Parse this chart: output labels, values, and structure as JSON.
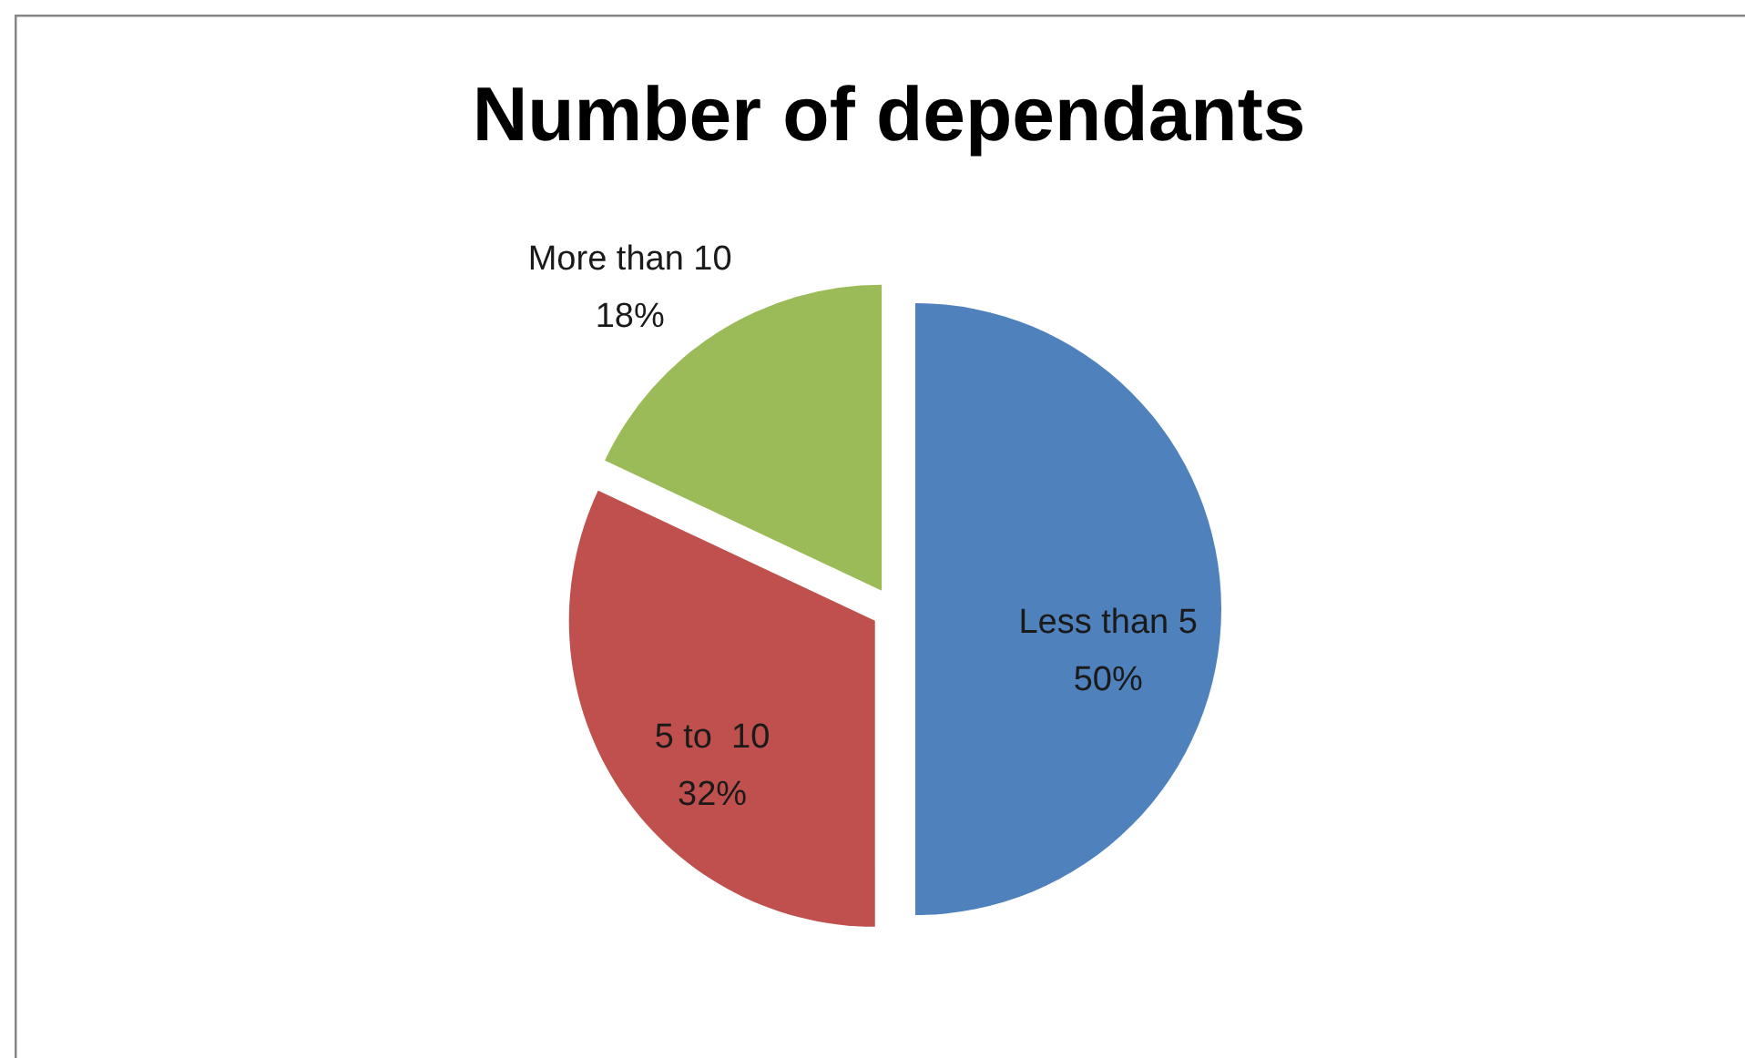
{
  "chart_data": {
    "type": "pie",
    "title": "Number of dependants",
    "categories": [
      "Less than 5",
      "5 to  10",
      "More than 10"
    ],
    "values": [
      50,
      32,
      18
    ],
    "value_labels": [
      "50%",
      "32%",
      "18%"
    ],
    "colors": [
      "#4f81bd",
      "#c0504d",
      "#9bbb59"
    ]
  }
}
